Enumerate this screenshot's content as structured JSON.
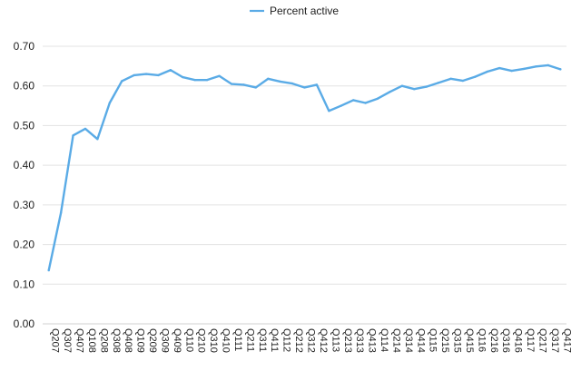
{
  "chart_data": {
    "type": "line",
    "title": "",
    "xlabel": "",
    "ylabel": "",
    "legend_position": "top",
    "grid": true,
    "ylim": [
      0,
      0.7
    ],
    "y_ticks": [
      "0.00",
      "0.10",
      "0.20",
      "0.30",
      "0.40",
      "0.50",
      "0.60",
      "0.70"
    ],
    "categories": [
      "Q207",
      "Q307",
      "Q407",
      "Q108",
      "Q208",
      "Q308",
      "Q408",
      "Q109",
      "Q209",
      "Q309",
      "Q409",
      "Q110",
      "Q210",
      "Q310",
      "Q410",
      "Q111",
      "Q211",
      "Q311",
      "Q411",
      "Q112",
      "Q212",
      "Q312",
      "Q412",
      "Q113",
      "Q213",
      "Q313",
      "Q413",
      "Q114",
      "Q214",
      "Q314",
      "Q414",
      "Q115",
      "Q215",
      "Q315",
      "Q415",
      "Q116",
      "Q216",
      "Q316",
      "Q416",
      "Q117",
      "Q217",
      "Q317",
      "Q417"
    ],
    "series": [
      {
        "name": "Percent active",
        "color": "#5aabe6",
        "values": [
          0.135,
          0.28,
          0.475,
          0.492,
          0.466,
          0.557,
          0.612,
          0.627,
          0.63,
          0.627,
          0.64,
          0.622,
          0.615,
          0.615,
          0.625,
          0.605,
          0.603,
          0.596,
          0.618,
          0.611,
          0.606,
          0.596,
          0.603,
          0.537,
          0.55,
          0.564,
          0.557,
          0.568,
          0.585,
          0.6,
          0.592,
          0.598,
          0.608,
          0.618,
          0.613,
          0.623,
          0.636,
          0.645,
          0.638,
          0.643,
          0.649,
          0.652,
          0.642
        ]
      }
    ]
  }
}
